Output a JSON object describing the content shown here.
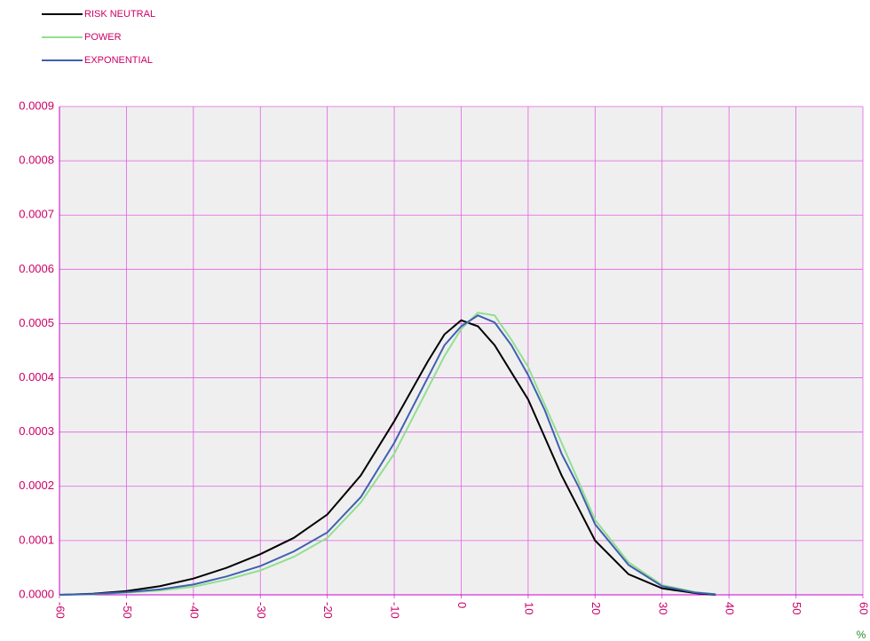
{
  "chart_data": {
    "type": "line",
    "x": [
      -60,
      -55,
      -50,
      -45,
      -40,
      -35,
      -30,
      -25,
      -20,
      -15,
      -10,
      -5,
      -2.5,
      0,
      2.5,
      5,
      7.5,
      10,
      12.5,
      15,
      17.5,
      20,
      25,
      30,
      35,
      38
    ],
    "series": [
      {
        "name": "RISK NEUTRAL",
        "color": "#000000",
        "values": [
          0,
          2e-06,
          7e-06,
          1.6e-05,
          3e-05,
          5e-05,
          7.5e-05,
          0.000105,
          0.000148,
          0.00022,
          0.00032,
          0.00043,
          0.00048,
          0.000506,
          0.000495,
          0.00046,
          0.00041,
          0.00036,
          0.00029,
          0.00022,
          0.00016,
          0.0001,
          3.8e-05,
          1.2e-05,
          3e-06,
          0
        ]
      },
      {
        "name": "POWER",
        "color": "#90e090",
        "values": [
          0,
          1e-06,
          4e-06,
          8e-06,
          1.5e-05,
          2.8e-05,
          4.5e-05,
          7e-05,
          0.000105,
          0.00017,
          0.00026,
          0.00038,
          0.00044,
          0.00049,
          0.00052,
          0.000515,
          0.00047,
          0.00042,
          0.00035,
          0.00028,
          0.00021,
          0.000138,
          6e-05,
          1.8e-05,
          5e-06,
          1e-06
        ]
      },
      {
        "name": "EXPONENTIAL",
        "color": "#4060b0",
        "values": [
          0,
          1.5e-06,
          5e-06,
          1e-05,
          1.9e-05,
          3.4e-05,
          5.3e-05,
          8e-05,
          0.000115,
          0.00018,
          0.00028,
          0.0004,
          0.00046,
          0.000495,
          0.000515,
          0.000502,
          0.00046,
          0.000405,
          0.00034,
          0.00026,
          0.0002,
          0.00013,
          5.5e-05,
          1.6e-05,
          4e-06,
          1e-06
        ]
      }
    ],
    "x_label": "%",
    "xlim": [
      -60,
      60
    ],
    "xticks": [
      -60,
      -50,
      -40,
      -30,
      -20,
      -10,
      0,
      10,
      20,
      30,
      40,
      50,
      60
    ],
    "ylim": [
      0,
      0.0009
    ],
    "yticks": [
      {
        "value": 0,
        "label": "0.0000"
      },
      {
        "value": 0.0001,
        "label": "0.0001"
      },
      {
        "value": 0.0002,
        "label": "0.0002"
      },
      {
        "value": 0.0003,
        "label": "0.0003"
      },
      {
        "value": 0.0004,
        "label": "0.0004"
      },
      {
        "value": 0.0005,
        "label": "0.0005"
      },
      {
        "value": 0.0006,
        "label": "0.0006"
      },
      {
        "value": 0.0007,
        "label": "0.0007"
      },
      {
        "value": 0.0008,
        "label": "0.0008"
      },
      {
        "value": 0.0009,
        "label": "0.0009"
      }
    ],
    "grid": true,
    "legend": "top-left"
  }
}
